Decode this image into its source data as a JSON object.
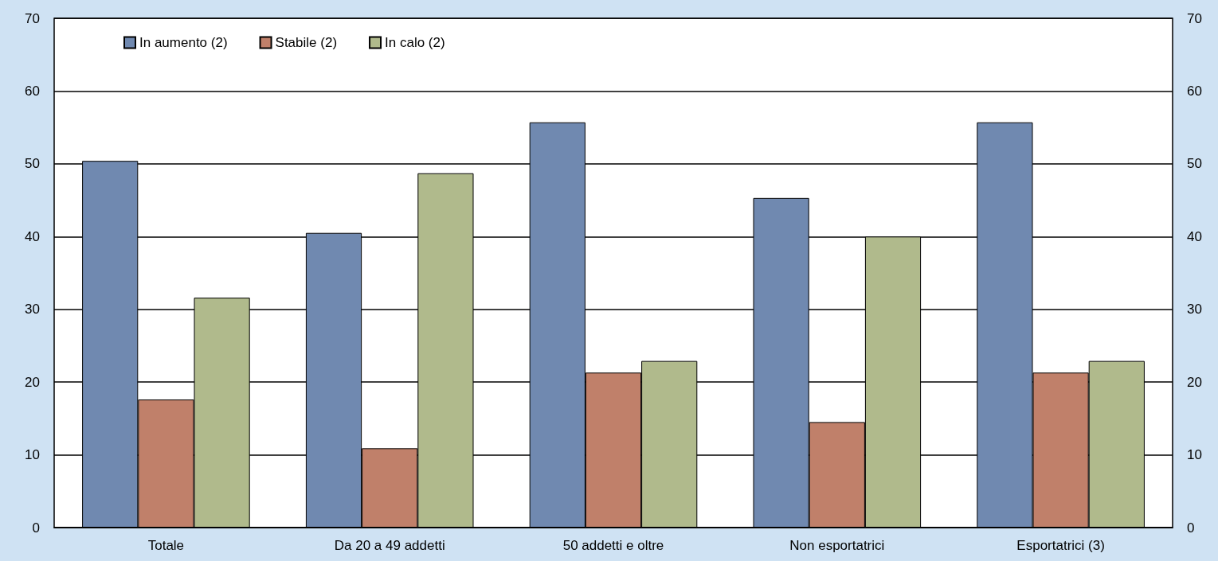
{
  "chart_data": {
    "type": "bar",
    "categories": [
      "Totale",
      "Da 20 a 49 addetti",
      "50 addetti e oltre",
      "Non esportatrici",
      "Esportatrici (3)"
    ],
    "series": [
      {
        "name": "In aumento (2)",
        "color": "#7089b0",
        "values": [
          50.4,
          40.5,
          55.7,
          45.3,
          55.7
        ]
      },
      {
        "name": "Stabile (2)",
        "color": "#c0806a",
        "values": [
          17.6,
          10.9,
          21.3,
          14.5,
          21.3
        ]
      },
      {
        "name": "In calo (2)",
        "color": "#b0ba8c",
        "values": [
          31.6,
          48.7,
          22.9,
          40.0,
          22.9
        ]
      }
    ],
    "ylim": [
      0,
      70
    ],
    "yticks": [
      0,
      10,
      20,
      30,
      40,
      50,
      60,
      70
    ],
    "y2lim": [
      0,
      70
    ],
    "y2ticks": [
      0,
      10,
      20,
      30,
      40,
      50,
      60,
      70
    ],
    "grid": "y",
    "legend": "top left"
  }
}
